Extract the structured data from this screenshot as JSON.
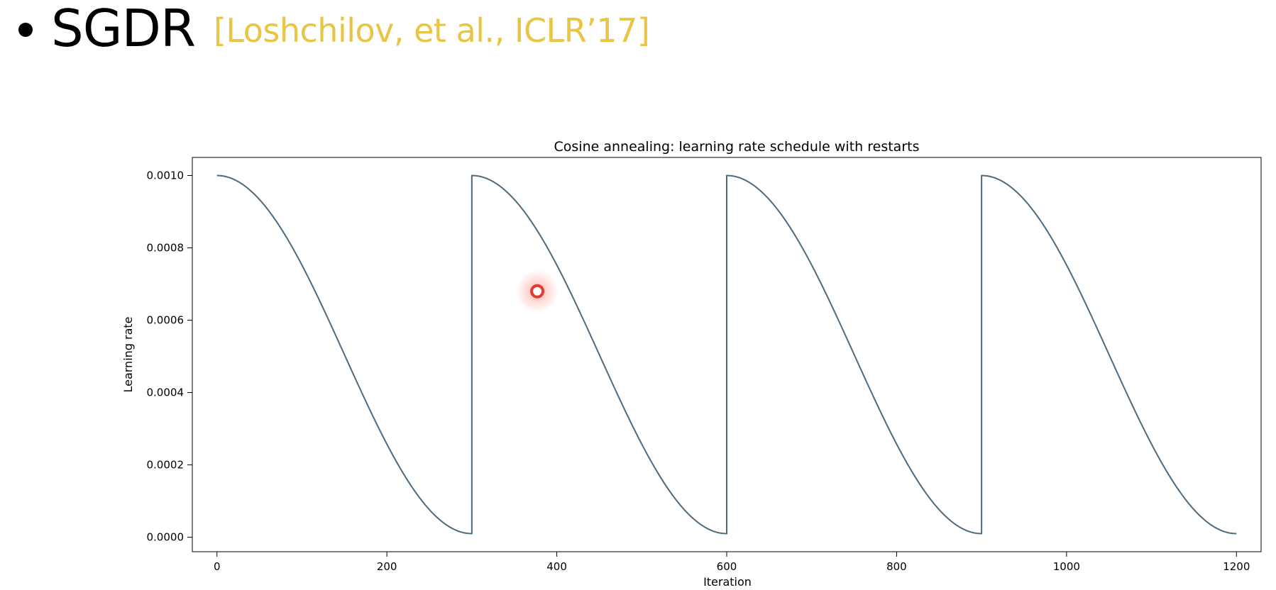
{
  "slide": {
    "title": "SGDR",
    "citation": "[Loshchilov, et al., ICLR’17]",
    "citation_color": "#e8c545",
    "title_color": "#000000"
  },
  "cursor_highlight": {
    "x": 377,
    "y": 0.00068,
    "color": "#e53a2c"
  },
  "chart_data": {
    "type": "line",
    "title": "Cosine annealing: learning rate schedule with restarts",
    "xlabel": "Iteration",
    "ylabel": "Learning rate",
    "xlim": [
      -29,
      1229
    ],
    "ylim": [
      -4e-05,
      0.00105
    ],
    "xticks": [
      0,
      200,
      400,
      600,
      800,
      1000,
      1200
    ],
    "xtick_labels": [
      "0",
      "200",
      "400",
      "600",
      "800",
      "1000",
      "1200"
    ],
    "yticks": [
      0.0,
      0.0002,
      0.0004,
      0.0006,
      0.0008,
      0.001
    ],
    "ytick_labels": [
      "0.0000",
      "0.0002",
      "0.0004",
      "0.0006",
      "0.0008",
      "0.0010"
    ],
    "grid": false,
    "line_color": "#4e6a7d",
    "schedule": {
      "lr_max": 0.001,
      "lr_min": 1e-05,
      "cycle_length": 300,
      "cycles": 4
    },
    "series": [
      {
        "x": [
          0,
          75,
          150,
          225,
          300,
          300,
          375,
          450,
          525,
          600,
          600,
          675,
          750,
          825,
          900,
          900,
          975,
          1050,
          1125,
          1200
        ],
        "values": [
          0.001,
          0.00085,
          0.000505,
          0.000155,
          1e-05,
          0.001,
          0.00085,
          0.000505,
          0.000155,
          1e-05,
          0.001,
          0.00085,
          0.000505,
          0.000155,
          1e-05,
          0.001,
          0.00085,
          0.000505,
          0.000155,
          1e-05
        ]
      }
    ]
  }
}
